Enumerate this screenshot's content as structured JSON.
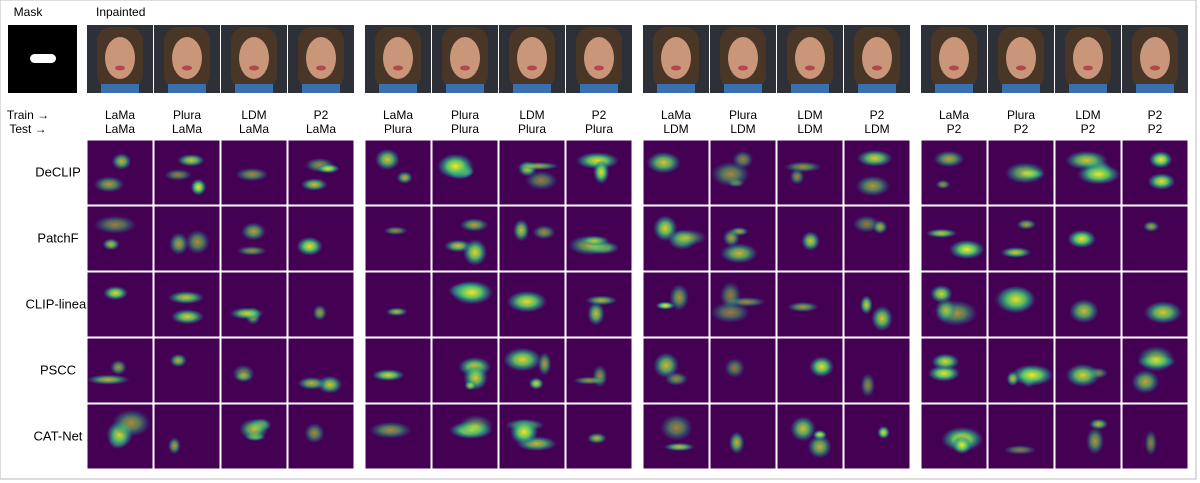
{
  "header": {
    "mask_label": "Mask",
    "inpainted_label": "Inpainted"
  },
  "train_label": "Train →",
  "test_label": "Test →",
  "columns": [
    {
      "train": "LaMa",
      "test": "LaMa",
      "color": "#1f1fd6"
    },
    {
      "train": "Plura",
      "test": "LaMa",
      "color": "#000000"
    },
    {
      "train": "LDM",
      "test": "LaMa",
      "color": "#000000"
    },
    {
      "train": "P2",
      "test": "LaMa",
      "color": "#000000"
    },
    {
      "train": "LaMa",
      "test": "Plura",
      "color": "#000000"
    },
    {
      "train": "Plura",
      "test": "Plura",
      "color": "#1f1fd6"
    },
    {
      "train": "LDM",
      "test": "Plura",
      "color": "#000000"
    },
    {
      "train": "P2",
      "test": "Plura",
      "color": "#000000"
    },
    {
      "train": "LaMa",
      "test": "LDM",
      "color": "#000000"
    },
    {
      "train": "Plura",
      "test": "LDM",
      "color": "#000000"
    },
    {
      "train": "LDM",
      "test": "LDM",
      "color": "#1f1fd6"
    },
    {
      "train": "P2",
      "test": "LDM",
      "color": "#000000"
    },
    {
      "train": "LaMa",
      "test": "P2",
      "color": "#000000"
    },
    {
      "train": "Plura",
      "test": "P2",
      "color": "#000000"
    },
    {
      "train": "LDM",
      "test": "P2",
      "color": "#000000"
    },
    {
      "train": "P2",
      "test": "P2",
      "color": "#1f1fd6"
    }
  ],
  "rows": [
    "DeCLIP",
    "PatchF",
    "CLIP-linear",
    "PSCC",
    "CAT-Net"
  ]
}
